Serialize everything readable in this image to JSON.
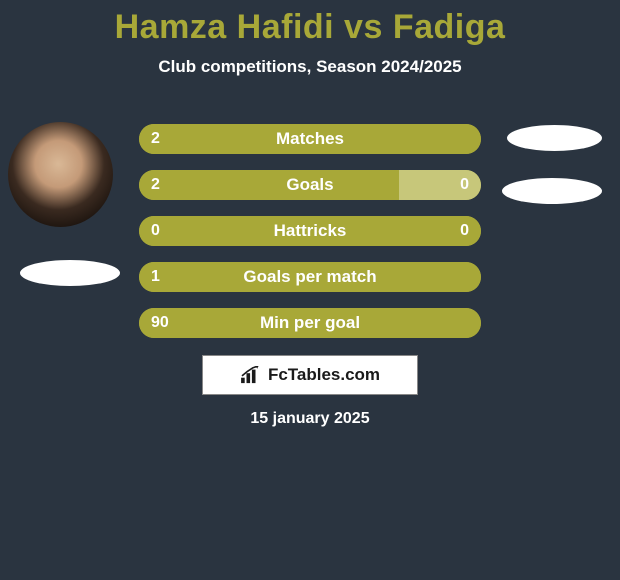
{
  "title": "Hamza Hafidi vs Fadiga",
  "subtitle": "Club competitions, Season 2024/2025",
  "date": "15 january 2025",
  "logo_text": "FcTables.com",
  "colors": {
    "background": "#2a3440",
    "title": "#a8a838",
    "text": "#ffffff",
    "bar_primary": "#a8a838",
    "bar_secondary": "#c7c77a",
    "ellipse": "#ffffff",
    "logo_bg": "#ffffff",
    "logo_text": "#1a1a1a"
  },
  "stats": [
    {
      "label": "Matches",
      "left_value": "2",
      "right_value": "",
      "left_pct": 100,
      "right_pct": 0,
      "right_color": "#c7c77a"
    },
    {
      "label": "Goals",
      "left_value": "2",
      "right_value": "0",
      "left_pct": 76,
      "right_pct": 24,
      "right_color": "#c7c77a"
    },
    {
      "label": "Hattricks",
      "left_value": "0",
      "right_value": "0",
      "left_pct": 100,
      "right_pct": 0,
      "right_color": "#c7c77a"
    },
    {
      "label": "Goals per match",
      "left_value": "1",
      "right_value": "",
      "left_pct": 100,
      "right_pct": 0,
      "right_color": "#c7c77a"
    },
    {
      "label": "Min per goal",
      "left_value": "90",
      "right_value": "",
      "left_pct": 100,
      "right_pct": 0,
      "right_color": "#c7c77a"
    }
  ]
}
